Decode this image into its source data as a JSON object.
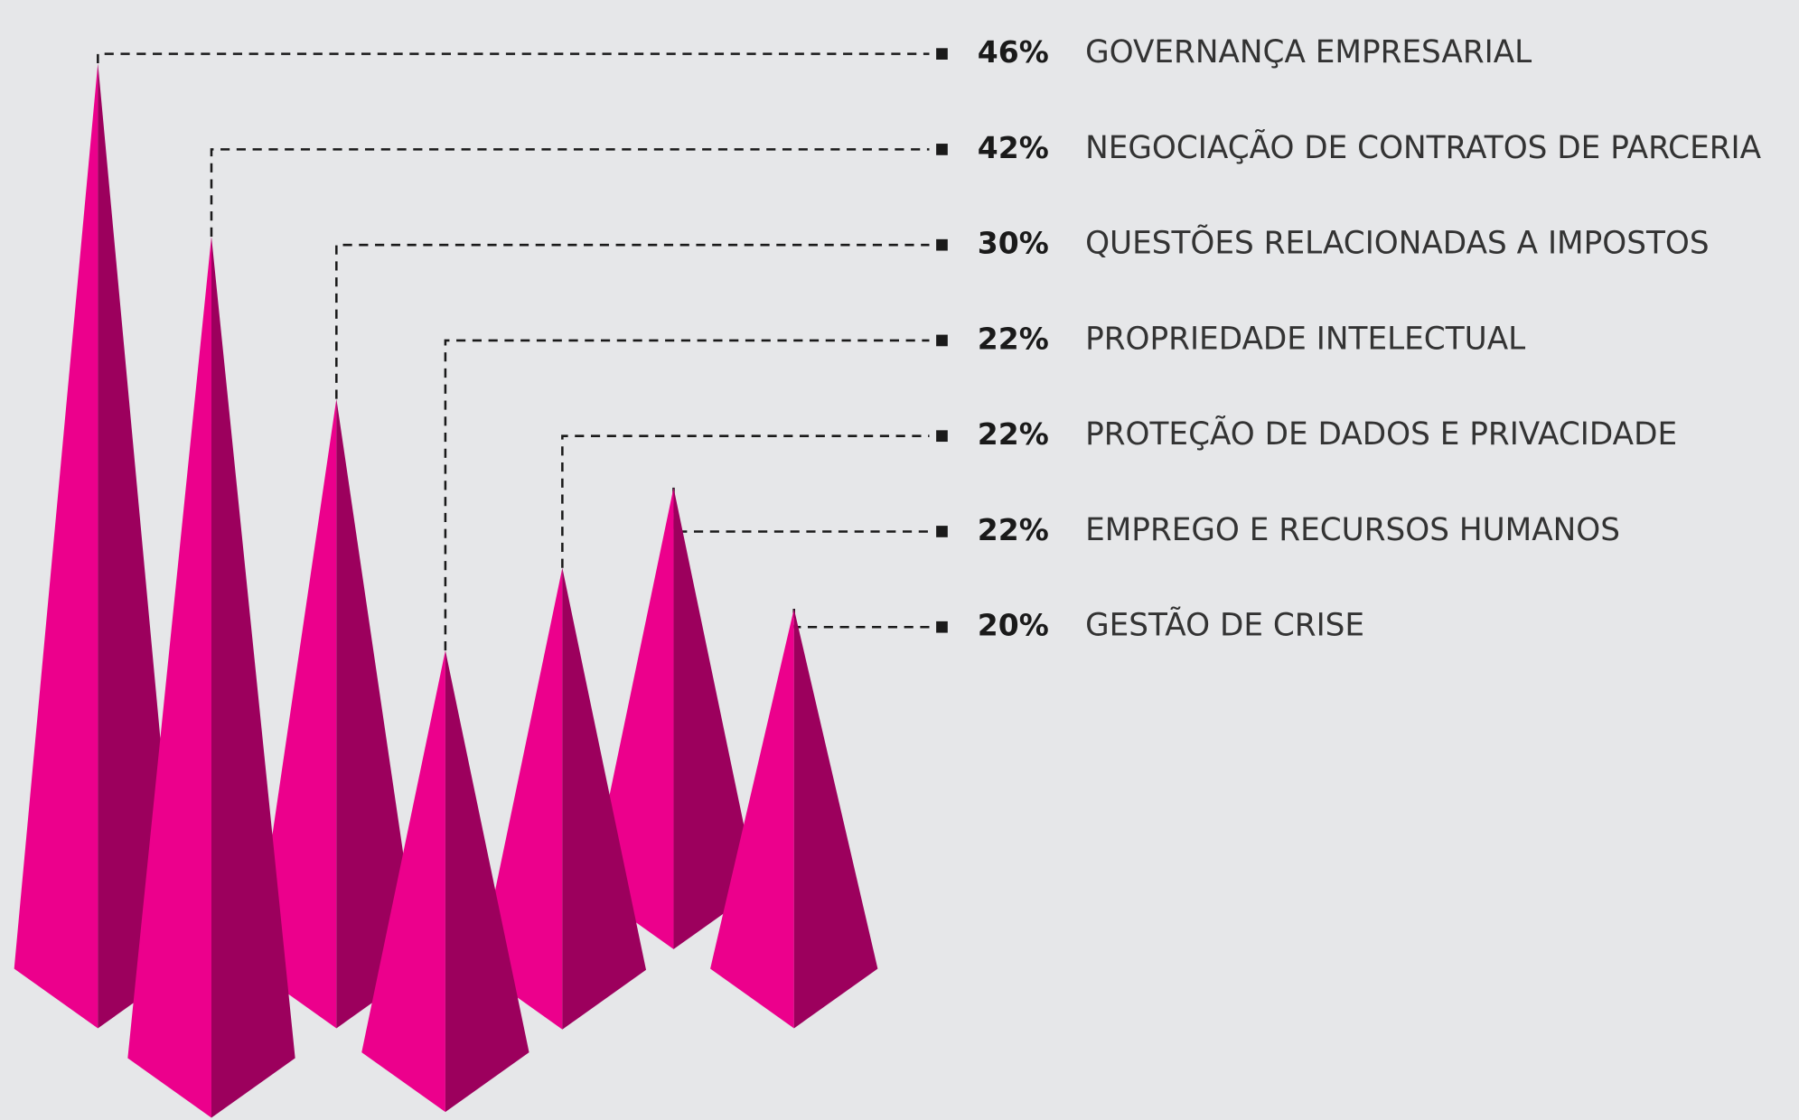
{
  "chart_data": {
    "type": "pyramid",
    "categories": [
      "GOVERNANÇA EMPRESARIAL",
      "NEGOCIAÇÃO DE CONTRATOS DE PARCERIA",
      "QUESTÕES RELACIONADAS A IMPOSTOS",
      "PROPRIEDADE INTELECTUAL",
      "PROTEÇÃO DE DADOS E PRIVACIDADE",
      "EMPREGO E RECURSOS HUMANOS",
      "GESTÃO DE CRISE"
    ],
    "values": [
      46,
      42,
      30,
      22,
      22,
      22,
      20
    ],
    "value_labels": [
      "46%",
      "42%",
      "30%",
      "22%",
      "22%",
      "22%",
      "20%"
    ],
    "color": "#ec008c",
    "shade_color": "#9c005d"
  }
}
